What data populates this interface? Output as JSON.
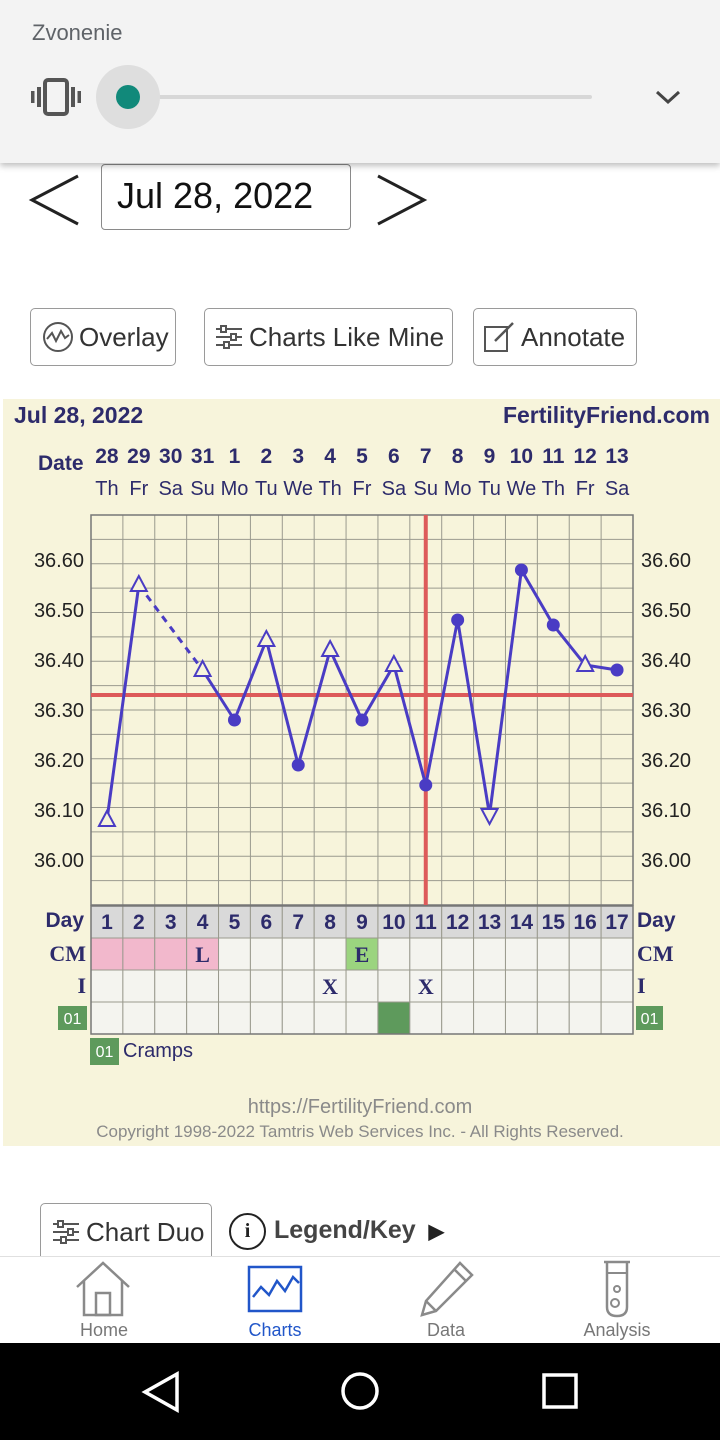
{
  "volume_panel": {
    "title": "Zvonenie",
    "level": 0.0
  },
  "date_nav": {
    "date": "Jul 28, 2022"
  },
  "toolbar": {
    "overlay": "Overlay",
    "charts_like_mine": "Charts Like Mine",
    "annotate": "Annotate"
  },
  "chart_header": {
    "date": "Jul 28, 2022",
    "brand": "FertilityFriend.com",
    "date_label": "Date"
  },
  "row_labels": {
    "day": "Day",
    "cm": "CM",
    "i": "I",
    "cramps_code": "01"
  },
  "chart_data": {
    "type": "line",
    "dates": [
      "28",
      "29",
      "30",
      "31",
      "1",
      "2",
      "3",
      "4",
      "5",
      "6",
      "7",
      "8",
      "9",
      "10",
      "11",
      "12",
      "13"
    ],
    "weekdays": [
      "Th",
      "Fr",
      "Sa",
      "Su",
      "Mo",
      "Tu",
      "We",
      "Th",
      "Fr",
      "Sa",
      "Su",
      "Mo",
      "Tu",
      "We",
      "Th",
      "Fr",
      "Sa"
    ],
    "cycle_days": [
      "1",
      "2",
      "3",
      "4",
      "5",
      "6",
      "7",
      "8",
      "9",
      "10",
      "11",
      "12",
      "13",
      "14",
      "15",
      "16",
      "17"
    ],
    "y_ticks": [
      "36.60",
      "36.50",
      "36.40",
      "36.30",
      "36.20",
      "36.10",
      "36.00"
    ],
    "ylim": [
      35.91,
      36.69
    ],
    "temperatures": [
      36.08,
      36.55,
      null,
      36.38,
      36.28,
      36.44,
      36.19,
      36.42,
      36.28,
      36.39,
      36.15,
      36.48,
      36.09,
      36.58,
      36.47,
      36.39,
      36.38
    ],
    "markers": [
      "tri-up",
      "tri-up",
      null,
      "tri-up",
      "dot",
      "tri-up",
      "dot",
      "tri-up",
      "dot",
      "tri-up",
      "dot",
      "dot",
      "tri-down",
      "dot",
      "dot",
      "tri-up",
      "dot"
    ],
    "coverline": 36.33,
    "ovulation_day": 11,
    "line_color": "#4a3cc4",
    "coverline_color": "#dd5a5a",
    "cm": [
      "",
      "",
      "",
      "L",
      "",
      "",
      "",
      "",
      "E",
      "",
      "",
      "",
      "",
      "",
      "",
      "",
      ""
    ],
    "intercourse": [
      "",
      "",
      "",
      "",
      "",
      "",
      "",
      "X",
      "",
      "",
      "X",
      "",
      "",
      "",
      "",
      "",
      ""
    ],
    "cramps_days": [
      10
    ],
    "legend_item": {
      "code": "01",
      "label": "Cramps"
    }
  },
  "footer": {
    "url": "https://FertilityFriend.com",
    "copyright": "Copyright 1998-2022 Tamtris Web Services Inc. - All Rights Reserved."
  },
  "below_chart": {
    "chart_duo": "Chart Duo",
    "legend_key": "Legend/Key",
    "legend_arrow": "▶",
    "info_glyph": "i"
  },
  "bottom_nav": {
    "home": "Home",
    "charts": "Charts",
    "data": "Data",
    "analysis": "Analysis",
    "active_color": "#2156c9"
  }
}
